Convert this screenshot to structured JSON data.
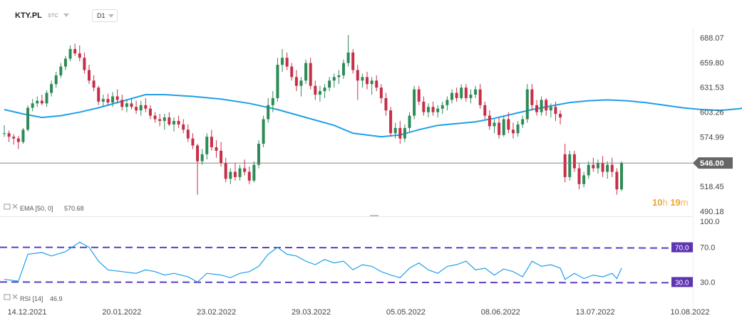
{
  "header": {
    "symbol": "KTY.PL",
    "exchange": "STC",
    "timeframe": "D1"
  },
  "chart_data": [
    {
      "type": "candlestick",
      "y_axis_ticks": [
        688.07,
        659.8,
        631.53,
        603.26,
        574.99,
        518.45,
        490.18
      ],
      "ylim": [
        480,
        705
      ],
      "x_axis_ticks": [
        "14.12.2021",
        "20.01.2022",
        "23.02.2022",
        "29.03.2022",
        "05.05.2022",
        "08.06.2022",
        "13.07.2022",
        "10.08.2022"
      ],
      "current_price": {
        "value": 546.0,
        "label": "546.00"
      },
      "countdown": {
        "hours": "10",
        "h_unit": "h",
        "minutes": "19",
        "m_unit": "m"
      },
      "indicator_label": "EMA [50, 0]",
      "indicator_value": "570.68",
      "colors": {
        "up": "#2e8b57",
        "down": "#c62f47",
        "ema": "#1ea0e6",
        "price_tag": "#666666"
      },
      "ema": [
        [
          0,
          607
        ],
        [
          4,
          602
        ],
        [
          8,
          598
        ],
        [
          12,
          600
        ],
        [
          16,
          604
        ],
        [
          20,
          609
        ],
        [
          24,
          615
        ],
        [
          28,
          621
        ],
        [
          30,
          624
        ],
        [
          34,
          624
        ],
        [
          40,
          622
        ],
        [
          46,
          619
        ],
        [
          52,
          614
        ],
        [
          58,
          607
        ],
        [
          64,
          598
        ],
        [
          70,
          589
        ],
        [
          74,
          580
        ],
        [
          80,
          576
        ],
        [
          84,
          578
        ],
        [
          88,
          584
        ],
        [
          92,
          589
        ],
        [
          96,
          591
        ],
        [
          100,
          593
        ],
        [
          104,
          597
        ],
        [
          108,
          602
        ],
        [
          112,
          607
        ],
        [
          116,
          611
        ],
        [
          120,
          615
        ],
        [
          124,
          617
        ],
        [
          128,
          618
        ],
        [
          132,
          617
        ],
        [
          136,
          615
        ],
        [
          140,
          612
        ],
        [
          144,
          609
        ],
        [
          148,
          607
        ],
        [
          152,
          606
        ],
        [
          156,
          608
        ],
        [
          160,
          611
        ],
        [
          166,
          614
        ],
        [
          172,
          614
        ],
        [
          176,
          612
        ],
        [
          180,
          608
        ],
        [
          184,
          604
        ],
        [
          188,
          603
        ],
        [
          190,
          602
        ],
        [
          194,
          598
        ],
        [
          198,
          591
        ],
        [
          202,
          584
        ],
        [
          206,
          578
        ],
        [
          208,
          576
        ]
      ],
      "candles": [
        [
          0,
          580,
          589,
          576,
          580
        ],
        [
          1,
          580,
          583,
          570,
          576
        ],
        [
          2,
          576,
          579,
          567,
          574
        ],
        [
          3,
          574,
          577,
          562,
          570
        ],
        [
          4,
          570,
          586,
          568,
          584
        ],
        [
          5,
          584,
          612,
          582,
          609
        ],
        [
          6,
          609,
          619,
          605,
          614
        ],
        [
          7,
          614,
          622,
          610,
          617
        ],
        [
          8,
          617,
          624,
          612,
          614
        ],
        [
          9,
          614,
          629,
          610,
          626
        ],
        [
          10,
          626,
          640,
          622,
          636
        ],
        [
          11,
          636,
          650,
          632,
          646
        ],
        [
          12,
          646,
          660,
          643,
          656
        ],
        [
          13,
          656,
          668,
          652,
          665
        ],
        [
          14,
          665,
          680,
          662,
          676
        ],
        [
          15,
          676,
          682,
          668,
          671
        ],
        [
          16,
          671,
          680,
          662,
          666
        ],
        [
          17,
          666,
          672,
          648,
          652
        ],
        [
          18,
          652,
          658,
          636,
          640
        ],
        [
          19,
          640,
          646,
          628,
          632
        ],
        [
          20,
          632,
          634,
          612,
          616
        ],
        [
          21,
          616,
          624,
          610,
          619
        ],
        [
          22,
          619,
          625,
          612,
          615
        ],
        [
          23,
          615,
          627,
          610,
          622
        ],
        [
          24,
          622,
          630,
          614,
          618
        ],
        [
          25,
          618,
          624,
          606,
          610
        ],
        [
          26,
          610,
          618,
          604,
          614
        ],
        [
          27,
          614,
          620,
          607,
          610
        ],
        [
          28,
          610,
          617,
          602,
          606
        ],
        [
          29,
          606,
          617,
          600,
          612
        ],
        [
          30,
          612,
          620,
          604,
          608
        ],
        [
          31,
          608,
          612,
          596,
          600
        ],
        [
          32,
          600,
          604,
          592,
          596
        ],
        [
          33,
          596,
          602,
          588,
          594
        ],
        [
          34,
          594,
          602,
          584,
          598
        ],
        [
          35,
          598,
          604,
          588,
          590
        ],
        [
          36,
          590,
          598,
          582,
          594
        ],
        [
          37,
          594,
          600,
          586,
          590
        ],
        [
          38,
          590,
          596,
          580,
          584
        ],
        [
          39,
          584,
          590,
          570,
          574
        ],
        [
          40,
          574,
          580,
          562,
          566
        ],
        [
          41,
          566,
          568,
          510,
          548
        ],
        [
          42,
          548,
          562,
          544,
          556
        ],
        [
          43,
          556,
          580,
          550,
          576
        ],
        [
          44,
          576,
          584,
          560,
          564
        ],
        [
          45,
          564,
          572,
          552,
          560
        ],
        [
          46,
          560,
          570,
          542,
          546
        ],
        [
          47,
          546,
          552,
          524,
          528
        ],
        [
          48,
          528,
          540,
          522,
          536
        ],
        [
          49,
          536,
          546,
          526,
          530
        ],
        [
          50,
          530,
          544,
          526,
          540
        ],
        [
          51,
          540,
          550,
          532,
          536
        ],
        [
          52,
          536,
          542,
          522,
          526
        ],
        [
          53,
          526,
          548,
          524,
          544
        ],
        [
          54,
          544,
          572,
          540,
          568
        ],
        [
          55,
          568,
          600,
          564,
          596
        ],
        [
          56,
          596,
          620,
          592,
          612
        ],
        [
          57,
          612,
          628,
          604,
          620
        ],
        [
          58,
          620,
          666,
          616,
          658
        ],
        [
          59,
          658,
          676,
          650,
          666
        ],
        [
          60,
          666,
          672,
          652,
          656
        ],
        [
          61,
          656,
          660,
          640,
          644
        ],
        [
          62,
          644,
          652,
          628,
          634
        ],
        [
          63,
          634,
          644,
          622,
          640
        ],
        [
          64,
          640,
          664,
          636,
          660
        ],
        [
          65,
          660,
          666,
          630,
          634
        ],
        [
          66,
          634,
          640,
          618,
          624
        ],
        [
          67,
          624,
          634,
          616,
          628
        ],
        [
          68,
          628,
          636,
          620,
          632
        ],
        [
          69,
          632,
          644,
          628,
          640
        ],
        [
          70,
          640,
          648,
          632,
          644
        ],
        [
          71,
          644,
          652,
          636,
          646
        ],
        [
          72,
          646,
          664,
          642,
          660
        ],
        [
          73,
          660,
          692,
          656,
          672
        ],
        [
          74,
          672,
          676,
          648,
          652
        ],
        [
          75,
          652,
          658,
          618,
          640
        ],
        [
          76,
          640,
          648,
          632,
          644
        ],
        [
          77,
          644,
          650,
          630,
          636
        ],
        [
          78,
          636,
          644,
          624,
          640
        ],
        [
          79,
          640,
          646,
          628,
          632
        ],
        [
          80,
          632,
          636,
          614,
          620
        ],
        [
          81,
          620,
          626,
          600,
          606
        ],
        [
          82,
          606,
          610,
          576,
          580
        ],
        [
          83,
          580,
          592,
          574,
          586
        ],
        [
          84,
          586,
          594,
          568,
          574
        ],
        [
          85,
          574,
          590,
          570,
          586
        ],
        [
          86,
          586,
          604,
          582,
          600
        ],
        [
          87,
          600,
          634,
          596,
          630
        ],
        [
          88,
          630,
          634,
          612,
          616
        ],
        [
          89,
          616,
          622,
          600,
          604
        ],
        [
          90,
          604,
          614,
          598,
          610
        ],
        [
          91,
          610,
          616,
          600,
          604
        ],
        [
          92,
          604,
          612,
          598,
          608
        ],
        [
          93,
          608,
          616,
          602,
          612
        ],
        [
          94,
          612,
          622,
          606,
          618
        ],
        [
          95,
          618,
          630,
          614,
          626
        ],
        [
          96,
          626,
          632,
          616,
          620
        ],
        [
          97,
          620,
          636,
          618,
          632
        ],
        [
          98,
          632,
          636,
          616,
          620
        ],
        [
          99,
          620,
          630,
          614,
          624
        ],
        [
          100,
          624,
          634,
          620,
          630
        ],
        [
          101,
          630,
          636,
          608,
          612
        ],
        [
          102,
          612,
          616,
          596,
          600
        ],
        [
          103,
          600,
          606,
          584,
          588
        ],
        [
          104,
          588,
          596,
          580,
          592
        ],
        [
          105,
          592,
          598,
          574,
          578
        ],
        [
          106,
          578,
          600,
          576,
          596
        ],
        [
          107,
          596,
          604,
          580,
          584
        ],
        [
          108,
          584,
          592,
          574,
          580
        ],
        [
          109,
          580,
          594,
          576,
          590
        ],
        [
          110,
          590,
          600,
          586,
          596
        ],
        [
          111,
          596,
          636,
          592,
          630
        ],
        [
          112,
          630,
          636,
          606,
          612
        ],
        [
          113,
          612,
          618,
          600,
          604
        ],
        [
          114,
          604,
          622,
          600,
          618
        ],
        [
          115,
          618,
          620,
          600,
          606
        ],
        [
          116,
          606,
          614,
          598,
          610
        ],
        [
          117,
          610,
          616,
          594,
          602
        ],
        [
          118,
          602,
          606,
          590,
          598
        ],
        [
          119,
          556,
          568,
          524,
          530
        ],
        [
          120,
          530,
          560,
          526,
          556
        ],
        [
          121,
          556,
          560,
          536,
          540
        ],
        [
          122,
          540,
          546,
          516,
          522
        ],
        [
          123,
          522,
          536,
          518,
          532
        ],
        [
          124,
          532,
          548,
          528,
          544
        ],
        [
          125,
          544,
          552,
          536,
          540
        ],
        [
          126,
          540,
          550,
          534,
          546
        ],
        [
          127,
          546,
          554,
          530,
          536
        ],
        [
          128,
          536,
          548,
          528,
          544
        ],
        [
          129,
          544,
          552,
          530,
          536
        ],
        [
          130,
          536,
          540,
          510,
          516
        ],
        [
          131,
          516,
          548,
          514,
          546
        ]
      ]
    },
    {
      "type": "line",
      "indicator_label": "RSI [14]",
      "indicator_value": "46.9",
      "y_axis_ticks": [
        100.0,
        70.0,
        30.0
      ],
      "ylim": [
        0,
        100
      ],
      "levels": [
        {
          "value": 70,
          "label": "70.0"
        },
        {
          "value": 30,
          "label": "30.0"
        }
      ],
      "colors": {
        "rsi": "#1ea0e6",
        "levels": "#5b3fc4",
        "level_tag": "#5e35b1"
      },
      "values": [
        [
          0,
          33
        ],
        [
          3,
          31
        ],
        [
          5,
          62
        ],
        [
          8,
          64
        ],
        [
          10,
          60
        ],
        [
          13,
          65
        ],
        [
          16,
          76
        ],
        [
          18,
          70
        ],
        [
          20,
          54
        ],
        [
          22,
          44
        ],
        [
          25,
          42
        ],
        [
          28,
          40
        ],
        [
          30,
          44
        ],
        [
          32,
          42
        ],
        [
          34,
          38
        ],
        [
          36,
          40
        ],
        [
          39,
          36
        ],
        [
          41,
          30
        ],
        [
          43,
          40
        ],
        [
          46,
          38
        ],
        [
          48,
          35
        ],
        [
          50,
          40
        ],
        [
          52,
          42
        ],
        [
          54,
          48
        ],
        [
          56,
          62
        ],
        [
          58,
          70
        ],
        [
          60,
          62
        ],
        [
          62,
          60
        ],
        [
          64,
          54
        ],
        [
          66,
          50
        ],
        [
          68,
          56
        ],
        [
          70,
          52
        ],
        [
          72,
          54
        ],
        [
          74,
          44
        ],
        [
          76,
          50
        ],
        [
          78,
          48
        ],
        [
          80,
          42
        ],
        [
          82,
          38
        ],
        [
          84,
          35
        ],
        [
          86,
          46
        ],
        [
          88,
          52
        ],
        [
          90,
          44
        ],
        [
          92,
          40
        ],
        [
          94,
          48
        ],
        [
          96,
          50
        ],
        [
          98,
          54
        ],
        [
          100,
          44
        ],
        [
          102,
          46
        ],
        [
          104,
          38
        ],
        [
          106,
          45
        ],
        [
          108,
          42
        ],
        [
          110,
          36
        ],
        [
          112,
          54
        ],
        [
          114,
          48
        ],
        [
          116,
          50
        ],
        [
          118,
          46
        ],
        [
          119,
          33
        ],
        [
          121,
          40
        ],
        [
          123,
          34
        ],
        [
          125,
          38
        ],
        [
          127,
          36
        ],
        [
          129,
          40
        ],
        [
          130,
          34
        ],
        [
          131,
          46
        ]
      ]
    }
  ]
}
